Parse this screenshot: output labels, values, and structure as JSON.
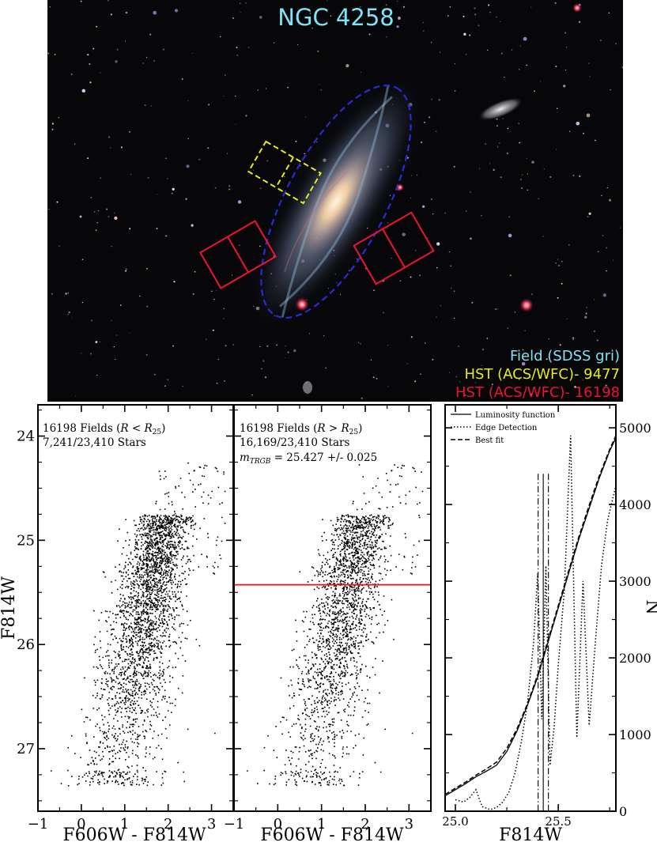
{
  "image_panel": {
    "title": "NGC 4258",
    "legend": [
      {
        "label": "Field (SDSS gri)",
        "color": "#7fe3f5"
      },
      {
        "label": "HST (ACS/WFC)- 9477",
        "color": "#e6ea1a"
      },
      {
        "label": "HST (ACS/WFC)- 16198",
        "color": "#ee1133"
      }
    ],
    "outline_colors": {
      "ellipse": "#2b2bd6",
      "fields_9477": "#e6ea1a",
      "fields_16198": "#ee1133"
    }
  },
  "chart_data": [
    {
      "type": "scatter",
      "panel": "cmd-inner",
      "title": "16198 Fields (R < R25)",
      "title_main": "16198 Fields (",
      "title_sym": "R",
      "title_rel": " < ",
      "title_sub": "25",
      "count_text": "7,241/23,410 Stars",
      "xlabel": "F606W - F814W",
      "ylabel": "F814W",
      "xlim": [
        -1,
        3.5
      ],
      "ylim": [
        27.6,
        23.7
      ],
      "xticks": [
        "−1",
        "0",
        "1",
        "2",
        "3"
      ],
      "yticks": [
        "24",
        "25",
        "26",
        "27"
      ],
      "n_points_drawn": 7241,
      "distribution": "red giant branch: color ~0.8 at F814W 27.2 rising to ~1.9 at F814W 25; sparse AGB stars 24.3-25"
    },
    {
      "type": "scatter",
      "panel": "cmd-outer",
      "title": "16198 Fields (R > R25)",
      "title_main": "16198 Fields (",
      "title_sym": "R",
      "title_rel": " > ",
      "title_sub": "25",
      "count_text": "16,169/23,410 Stars",
      "trgb_text_sym": "m",
      "trgb_text_sub": "TRGB",
      "trgb_text_rest": " = 25.427 +/- 0.025",
      "trgb": 25.427,
      "trgb_err": 0.025,
      "trgb_line_color": "#ee1111",
      "xlabel": "F606W - F814W",
      "xlim": [
        -1,
        3.5
      ],
      "ylim": [
        27.6,
        23.7
      ],
      "xticks": [
        "−1",
        "0",
        "1",
        "2",
        "3"
      ],
      "n_points_drawn": 16169
    },
    {
      "type": "line",
      "panel": "luminosity-function",
      "xlabel": "F814W",
      "ylabel": "N",
      "xlim": [
        24.95,
        25.78
      ],
      "ylim": [
        0,
        5300
      ],
      "xticks": [
        {
          "v": 25.0,
          "label": "25.0"
        },
        {
          "v": 25.5,
          "label": "25.5"
        }
      ],
      "xticks_minor": [
        25.25,
        25.75
      ],
      "yticks": [
        0,
        1000,
        2000,
        3000,
        4000,
        5000
      ],
      "legend": [
        "Luminosity function",
        "Edge Detection",
        "Best fit"
      ],
      "legend_position": "top-left",
      "series": [
        {
          "name": "Luminosity function",
          "style": "solid",
          "x": [
            24.95,
            25.0,
            25.05,
            25.1,
            25.15,
            25.2,
            25.25,
            25.3,
            25.35,
            25.4,
            25.45,
            25.5,
            25.55,
            25.6,
            25.65,
            25.7,
            25.75,
            25.78
          ],
          "y": [
            200,
            280,
            360,
            450,
            520,
            600,
            780,
            1050,
            1380,
            1750,
            2200,
            2650,
            3100,
            3550,
            3950,
            4350,
            4700,
            4870
          ]
        },
        {
          "name": "Edge Detection",
          "style": "dotted",
          "x": [
            25.0,
            25.04,
            25.07,
            25.1,
            25.13,
            25.17,
            25.2,
            25.23,
            25.26,
            25.29,
            25.32,
            25.35,
            25.38,
            25.4,
            25.42,
            25.44,
            25.46,
            25.48,
            25.5,
            25.53,
            25.56,
            25.59,
            25.62,
            25.65,
            25.68,
            25.71,
            25.74,
            25.78
          ],
          "y": [
            150,
            120,
            180,
            280,
            60,
            20,
            50,
            120,
            250,
            500,
            900,
            1400,
            2200,
            3100,
            1200,
            3200,
            600,
            1100,
            1900,
            2900,
            4900,
            960,
            3000,
            1120,
            2200,
            3200,
            3800,
            4250
          ]
        },
        {
          "name": "Best fit",
          "style": "dashed",
          "x": [
            24.95,
            25.0,
            25.05,
            25.1,
            25.15,
            25.2,
            25.25,
            25.3,
            25.35,
            25.4,
            25.45,
            25.5,
            25.55,
            25.6,
            25.65,
            25.7,
            25.75,
            25.78
          ],
          "y": [
            220,
            300,
            380,
            470,
            550,
            640,
            820,
            1080,
            1400,
            1780,
            2230,
            2680,
            3130,
            3580,
            3990,
            4380,
            4720,
            4900
          ]
        }
      ],
      "vertical_lines": [
        {
          "x": 25.402,
          "style": "dashdot"
        },
        {
          "x": 25.427,
          "style": "solid"
        },
        {
          "x": 25.452,
          "style": "dashdot"
        }
      ]
    }
  ]
}
